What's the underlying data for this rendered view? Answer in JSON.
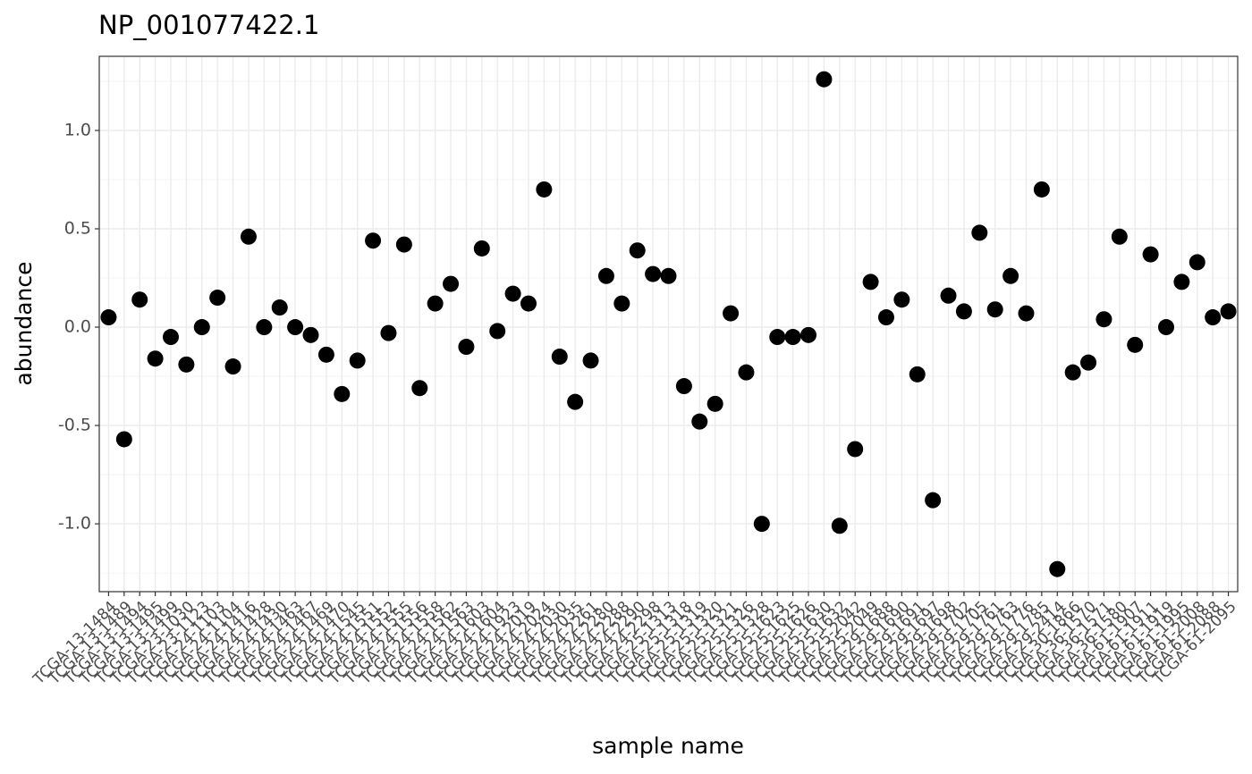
{
  "chart_data": {
    "type": "scatter",
    "title": "NP_001077422.1",
    "x_label": "sample name",
    "y_label": "abundance",
    "categories": [
      "TCGA-13-1484",
      "TCGA-13-1489",
      "TCGA-13-1494",
      "TCGA-13-1495",
      "TCGA-13-1499",
      "TCGA-23-1030",
      "TCGA-23-1123",
      "TCGA-24-1103",
      "TCGA-24-1104",
      "TCGA-24-1416",
      "TCGA-24-1428",
      "TCGA-24-1430",
      "TCGA-24-1463",
      "TCGA-24-1467",
      "TCGA-24-1469",
      "TCGA-24-1470",
      "TCGA-24-1545",
      "TCGA-24-1551",
      "TCGA-24-1552",
      "TCGA-24-1555",
      "TCGA-24-1556",
      "TCGA-24-1558",
      "TCGA-24-1562",
      "TCGA-24-1563",
      "TCGA-24-1603",
      "TCGA-24-1604",
      "TCGA-24-1923",
      "TCGA-24-2019",
      "TCGA-24-2024",
      "TCGA-24-2030",
      "TCGA-24-2035",
      "TCGA-24-2261",
      "TCGA-24-2280",
      "TCGA-24-2288",
      "TCGA-24-2290",
      "TCGA-24-2298",
      "TCGA-25-1313",
      "TCGA-25-1318",
      "TCGA-25-1319",
      "TCGA-25-1320",
      "TCGA-25-1321",
      "TCGA-25-1326",
      "TCGA-25-1328",
      "TCGA-25-1623",
      "TCGA-25-1625",
      "TCGA-25-1626",
      "TCGA-25-1630",
      "TCGA-25-1632",
      "TCGA-25-2042",
      "TCGA-25-2049",
      "TCGA-29-1688",
      "TCGA-29-1690",
      "TCGA-29-1691",
      "TCGA-29-1697",
      "TCGA-29-1698",
      "TCGA-29-1702",
      "TCGA-29-1705",
      "TCGA-29-1761",
      "TCGA-29-1763",
      "TCGA-29-1776",
      "TCGA-29-1785",
      "TCGA-29-2414",
      "TCGA-30-1866",
      "TCGA-36-1570",
      "TCGA-36-1571",
      "TCGA-36-1580",
      "TCGA-61-1907",
      "TCGA-61-1911",
      "TCGA-61-1919",
      "TCGA-61-1995",
      "TCGA-61-2008",
      "TCGA-61-2088",
      "TCGA-61-2095"
    ],
    "values": [
      0.05,
      -0.57,
      0.14,
      -0.16,
      -0.05,
      -0.19,
      0.0,
      0.15,
      -0.2,
      0.46,
      0.0,
      0.1,
      0.0,
      -0.04,
      -0.14,
      -0.34,
      -0.17,
      0.44,
      -0.03,
      0.42,
      -0.31,
      0.12,
      0.22,
      -0.1,
      0.4,
      -0.02,
      0.17,
      0.12,
      0.7,
      -0.15,
      -0.38,
      -0.17,
      0.26,
      0.12,
      0.39,
      0.27,
      0.26,
      -0.3,
      -0.48,
      -0.39,
      0.07,
      -0.23,
      -1.0,
      -0.05,
      -0.05,
      -0.04,
      1.26,
      -1.01,
      -0.62,
      0.23,
      0.05,
      0.14,
      -0.24,
      -0.88,
      0.16,
      0.08,
      0.48,
      0.09,
      0.26,
      0.07,
      0.7,
      -1.23,
      -0.23,
      -0.18,
      0.04,
      0.46,
      -0.09,
      0.37,
      0.0,
      0.23,
      0.33,
      0.05,
      0.08
    ],
    "color": "#000000",
    "ylim": [
      -1.345,
      1.377
    ],
    "yticks": [
      {
        "value": -1,
        "label": "-1.0"
      },
      -0.5,
      {
        "value": 0,
        "label": "0.0"
      },
      0.5,
      {
        "value": 1,
        "label": "1.0"
      }
    ],
    "grid": true
  }
}
